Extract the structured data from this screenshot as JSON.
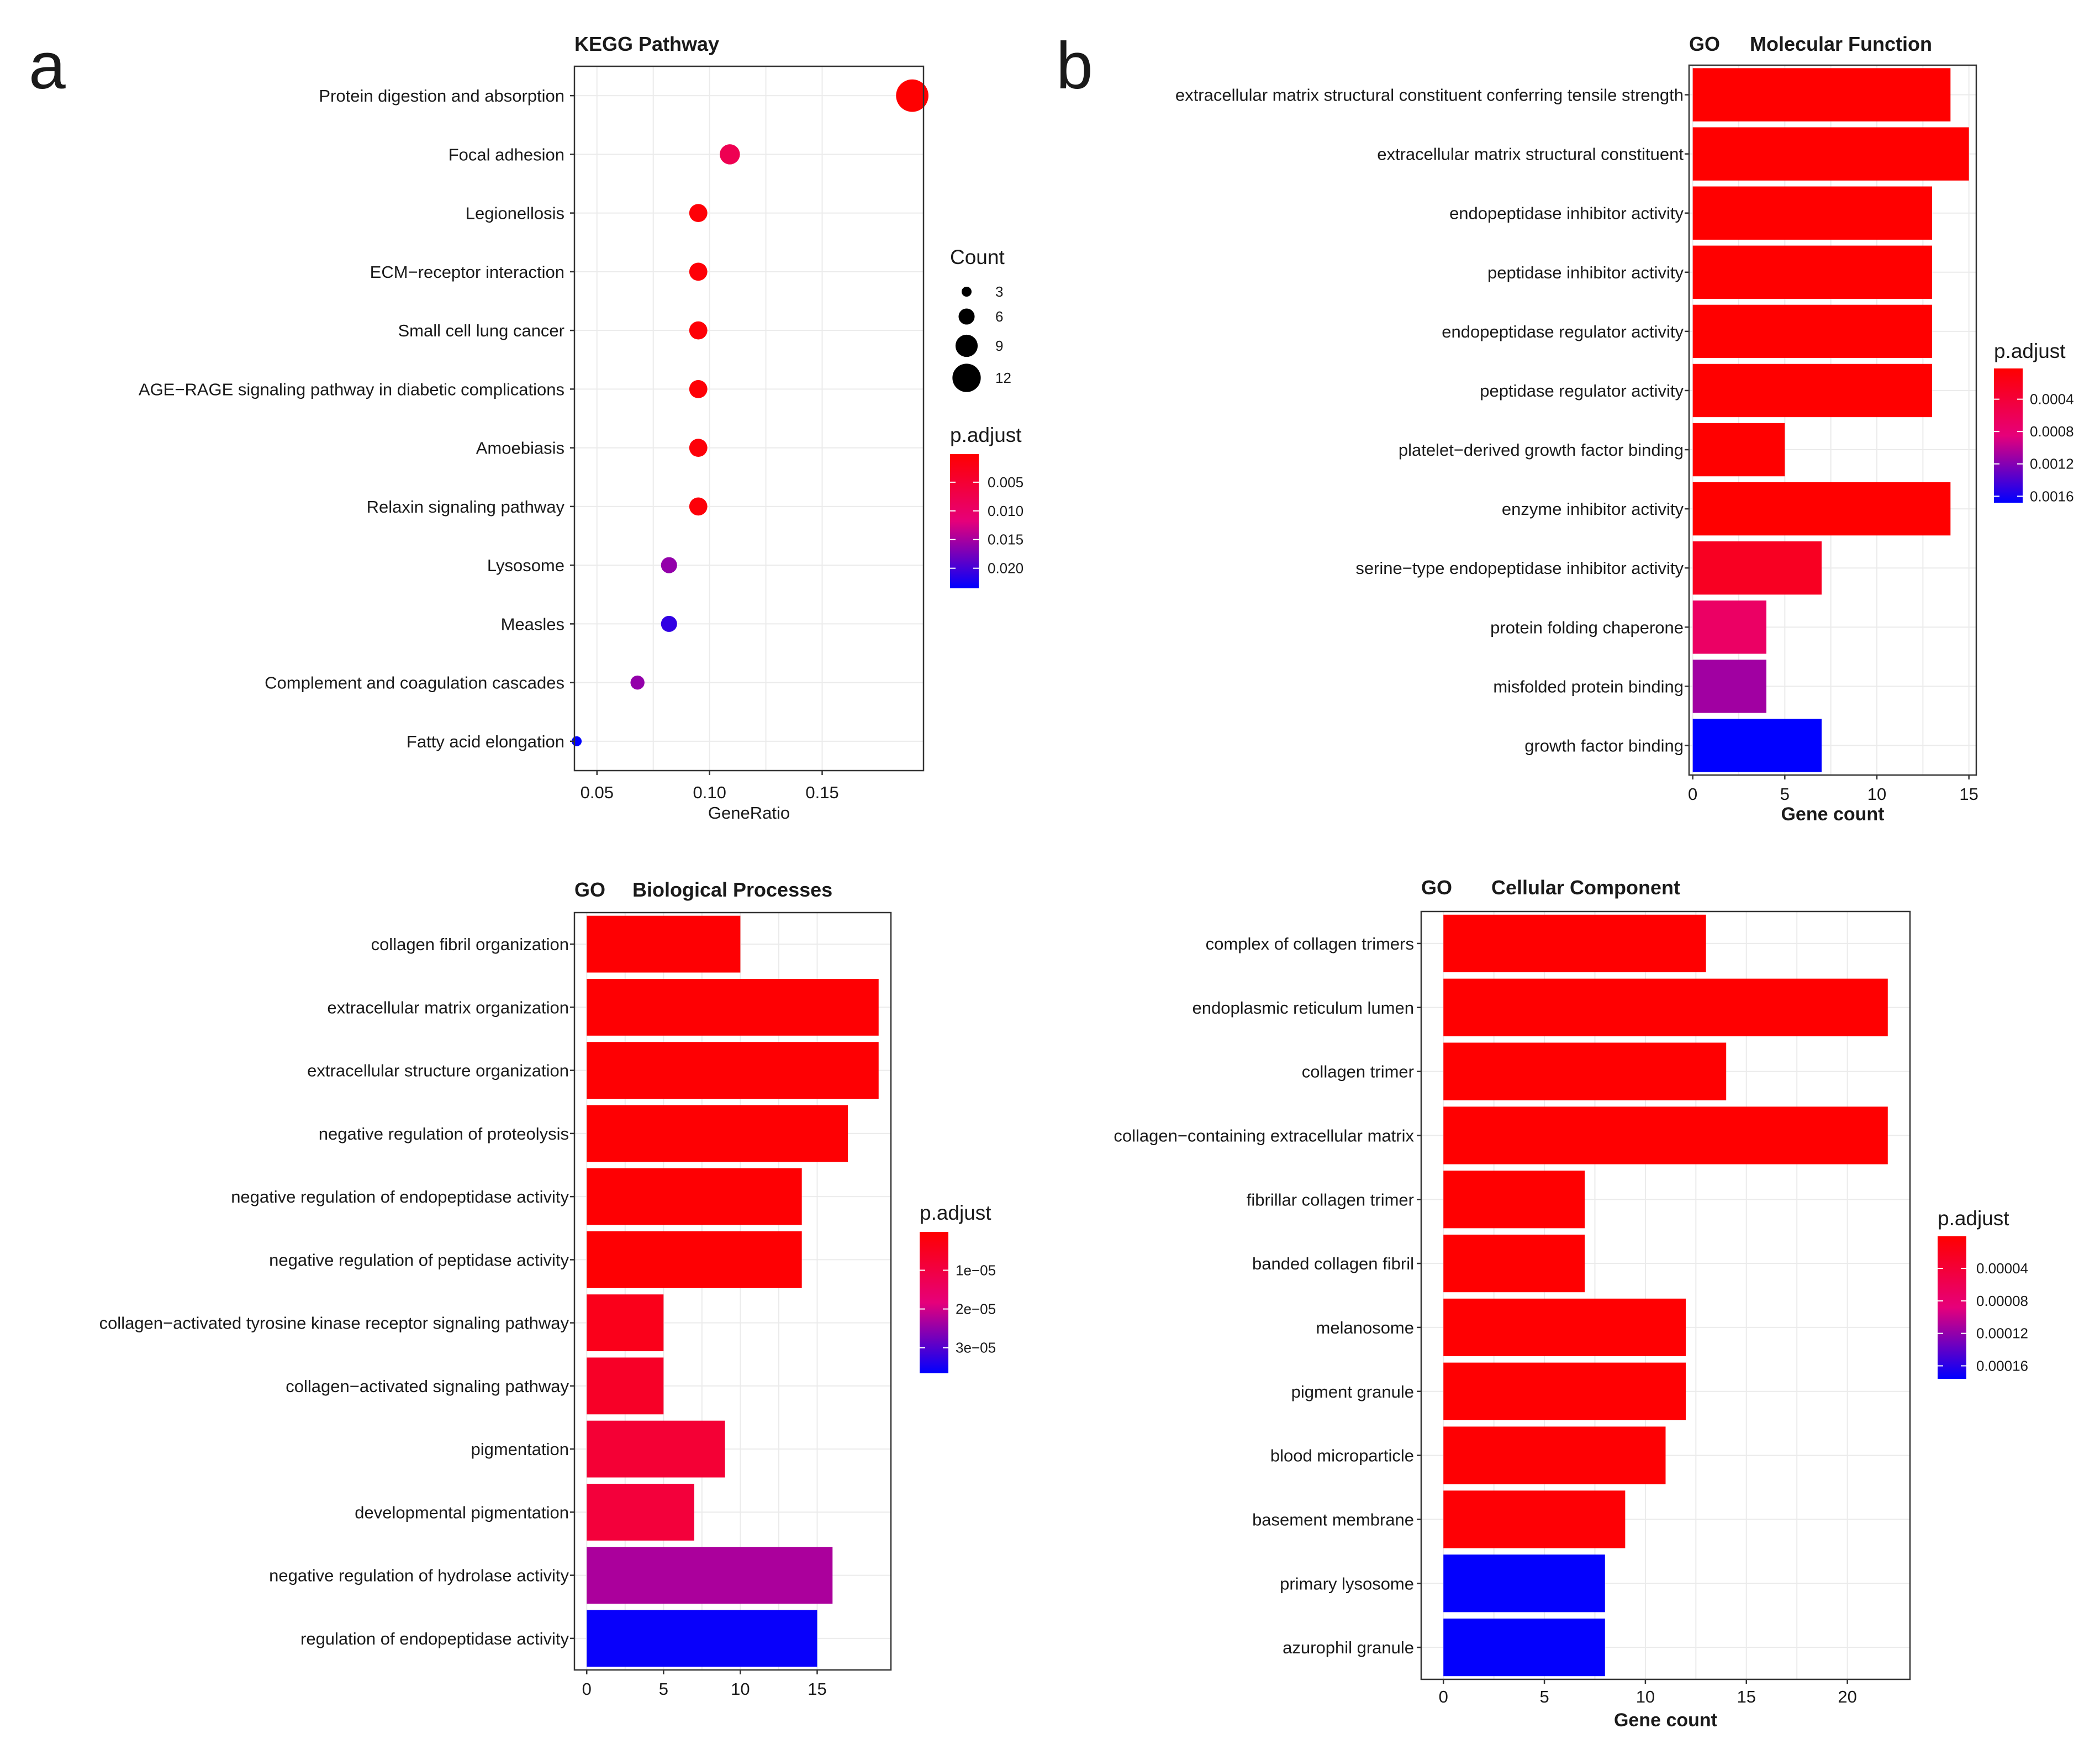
{
  "panel_labels": [
    "a",
    "b"
  ],
  "colors": {
    "low_p": "#ff0000",
    "high_p": "#0000ff",
    "mid_p": "#cc00cc"
  },
  "chart_data": [
    {
      "id": "kegg",
      "type": "scatter",
      "title": "KEGG  Pathway",
      "xlabel": "GeneRatio",
      "xlim": [
        0.04,
        0.195
      ],
      "xticks": [
        0.05,
        0.1,
        0.15
      ],
      "xtick_labels": [
        "0.05",
        "0.10",
        "0.15"
      ],
      "categories": [
        "Protein digestion and absorption",
        "Focal adhesion",
        "Legionellosis",
        "ECM−receptor interaction",
        "Small cell lung cancer",
        "AGE−RAGE signaling pathway in diabetic complications",
        "Amoebiasis",
        "Relaxin signaling pathway",
        "Lysosome",
        "Measles",
        "Complement and coagulation cascades",
        "Fatty acid elongation"
      ],
      "x": [
        0.19,
        0.109,
        0.095,
        0.095,
        0.095,
        0.095,
        0.095,
        0.095,
        0.082,
        0.082,
        0.068,
        0.041
      ],
      "count": [
        14,
        8,
        7,
        7,
        7,
        7,
        7,
        7,
        6,
        6,
        5,
        3
      ],
      "p_adjust": [
        0.0002,
        0.008,
        0.0008,
        0.0008,
        0.0008,
        0.0008,
        0.001,
        0.001,
        0.016,
        0.021,
        0.016,
        0.024
      ],
      "size_legend": {
        "title": "Count",
        "values": [
          3,
          6,
          9,
          12
        ],
        "labels": [
          "3",
          "6",
          "9",
          "12"
        ]
      },
      "color_legend": {
        "title": "p.adjust",
        "ticks": [
          0.005,
          0.01,
          0.015,
          0.02
        ],
        "labels": [
          "0.005",
          "0.010",
          "0.015",
          "0.020"
        ],
        "range": [
          0.0001,
          0.0235
        ]
      }
    },
    {
      "id": "go_mf",
      "type": "bar",
      "title_prefix": "GO",
      "title": "Molecular Function",
      "xlabel": "Gene count",
      "xlim": [
        -0.2,
        15.4
      ],
      "xticks": [
        0,
        5,
        10,
        15
      ],
      "xtick_labels": [
        "0",
        "5",
        "10",
        "15"
      ],
      "categories": [
        "extracellular matrix structural constituent conferring tensile strength",
        "extracellular matrix structural constituent",
        "endopeptidase inhibitor activity",
        "peptidase inhibitor activity",
        "endopeptidase regulator activity",
        "peptidase regulator activity",
        "platelet−derived growth factor binding",
        "enzyme inhibitor activity",
        "serine−type endopeptidase inhibitor activity",
        "protein folding chaperone",
        "misfolded protein binding",
        "growth factor binding"
      ],
      "values": [
        14,
        15,
        13,
        13,
        13,
        13,
        5,
        14,
        7,
        4,
        4,
        7
      ],
      "p_adjust": [
        2e-05,
        2e-05,
        2e-05,
        2e-05,
        2e-05,
        2e-05,
        2e-05,
        2e-05,
        0.00025,
        0.0007,
        0.0011,
        0.0017
      ],
      "color_legend": {
        "title": "p.adjust",
        "ticks": [
          0.0004,
          0.0008,
          0.0012,
          0.0016
        ],
        "labels": [
          "0.0004",
          "0.0008",
          "0.0012",
          "0.0016"
        ],
        "range": [
          2e-05,
          0.00168
        ]
      }
    },
    {
      "id": "go_bp",
      "type": "bar",
      "title_prefix": "GO",
      "title": "Biological Processes",
      "xlabel": "",
      "xlim": [
        -0.8,
        19.8
      ],
      "xticks": [
        0,
        5,
        10,
        15
      ],
      "xtick_labels": [
        "0",
        "5",
        "10",
        "15"
      ],
      "categories": [
        "collagen fibril organization",
        "extracellular matrix organization",
        "extracellular structure organization",
        "negative regulation of proteolysis",
        "negative regulation of endopeptidase activity",
        "negative regulation of peptidase activity",
        "collagen−activated tyrosine kinase receptor signaling pathway",
        "collagen−activated signaling pathway",
        "pigmentation",
        "developmental pigmentation",
        "negative regulation of hydrolase activity",
        "regulation of endopeptidase activity"
      ],
      "values": [
        10,
        19,
        19,
        17,
        14,
        14,
        5,
        5,
        9,
        7,
        16,
        15
      ],
      "p_adjust": [
        5e-07,
        5e-07,
        5e-07,
        5e-07,
        5e-07,
        5e-07,
        4e-06,
        6e-06,
        8e-06,
        9e-06,
        2.3e-05,
        3.6e-05
      ],
      "color_legend": {
        "title": "p.adjust",
        "ticks": [
          1e-05,
          2e-05,
          3e-05
        ],
        "labels": [
          "1e−05",
          "2e−05",
          "3e−05"
        ],
        "range": [
          1e-07,
          3.66e-05
        ]
      }
    },
    {
      "id": "go_cc",
      "type": "bar",
      "title_prefix": "GO",
      "title": "Cellular Component",
      "xlabel": "Gene count",
      "xlim": [
        -1.1,
        23.1
      ],
      "xticks": [
        0,
        5,
        10,
        15,
        20
      ],
      "xtick_labels": [
        "0",
        "5",
        "10",
        "15",
        "20"
      ],
      "categories": [
        "complex of collagen trimers",
        "endoplasmic reticulum lumen",
        "collagen trimer",
        "collagen−containing extracellular matrix",
        "fibrillar collagen trimer",
        "banded collagen fibril",
        "melanosome",
        "pigment granule",
        "blood microparticle",
        "basement membrane",
        "primary lysosome",
        "azurophil granule"
      ],
      "values": [
        13,
        22,
        14,
        22,
        7,
        7,
        12,
        12,
        11,
        9,
        8,
        8
      ],
      "p_adjust": [
        1e-06,
        1e-06,
        1e-06,
        1e-06,
        1e-06,
        1e-06,
        2e-06,
        2e-06,
        3e-06,
        4e-06,
        0.000175,
        0.000175
      ],
      "color_legend": {
        "title": "p.adjust",
        "ticks": [
          4e-05,
          8e-05,
          0.00012,
          0.00016
        ],
        "labels": [
          "0.00004",
          "0.00008",
          "0.00012",
          "0.00016"
        ],
        "range": [
          5e-07,
          0.000176
        ]
      }
    }
  ]
}
